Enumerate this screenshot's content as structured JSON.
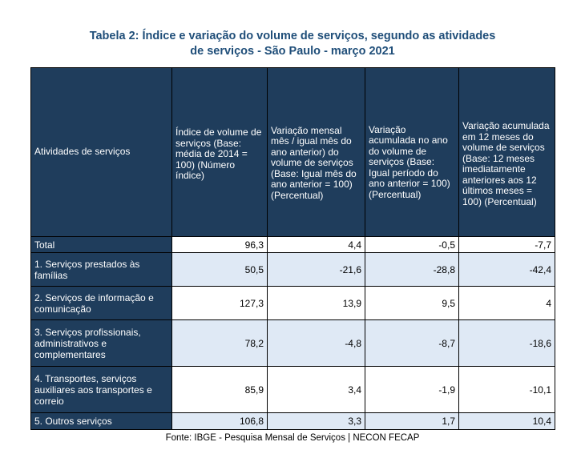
{
  "title": {
    "line1": "Tabela 2: Índice e variação do volume de serviços, segundo as atividades",
    "line2": "de serviços - São Paulo - março 2021"
  },
  "table": {
    "headers": [
      "Atividades de serviços",
      "Índice de volume de serviços (Base: média de 2014 = 100) (Número índice)",
      "Variação mensal mês / igual mês do ano anterior) do volume de serviços (Base: Igual mês do ano anterior = 100) (Percentual)",
      "Variação acumulada no ano do volume de serviços (Base: Igual período do ano anterior = 100) (Percentual)",
      "Variação acumulada em 12 meses do volume de serviços (Base: 12 meses imediatamente anteriores aos 12 últimos meses = 100) (Percentual)"
    ],
    "rows": [
      {
        "activity": "Total",
        "index": "96,3",
        "monthly": "4,4",
        "ytd": "-0,5",
        "twelve": "-7,7"
      },
      {
        "activity": "1. Serviços prestados às famílias",
        "index": "50,5",
        "monthly": "-21,6",
        "ytd": "-28,8",
        "twelve": "-42,4"
      },
      {
        "activity": "2. Serviços de informação e comunicação",
        "index": "127,3",
        "monthly": "13,9",
        "ytd": "9,5",
        "twelve": "4"
      },
      {
        "activity": "3. Serviços profissionais, administrativos e complementares",
        "index": "78,2",
        "monthly": "-4,8",
        "ytd": "-8,7",
        "twelve": "-18,6"
      },
      {
        "activity": "4. Transportes, serviços auxiliares aos transportes e correio",
        "index": "85,9",
        "monthly": "3,4",
        "ytd": "-1,9",
        "twelve": "-10,1"
      },
      {
        "activity": "5. Outros serviços",
        "index": "106,8",
        "monthly": "3,3",
        "ytd": "1,7",
        "twelve": "10,4"
      }
    ]
  },
  "source": "Fonte: IBGE - Pesquisa Mensal de Serviços | NECON FECAP",
  "colors": {
    "title": "#1f4e79",
    "header_bg": "#1f3d5c",
    "row_light": "#dfe9f5",
    "row_white": "#ffffff"
  }
}
